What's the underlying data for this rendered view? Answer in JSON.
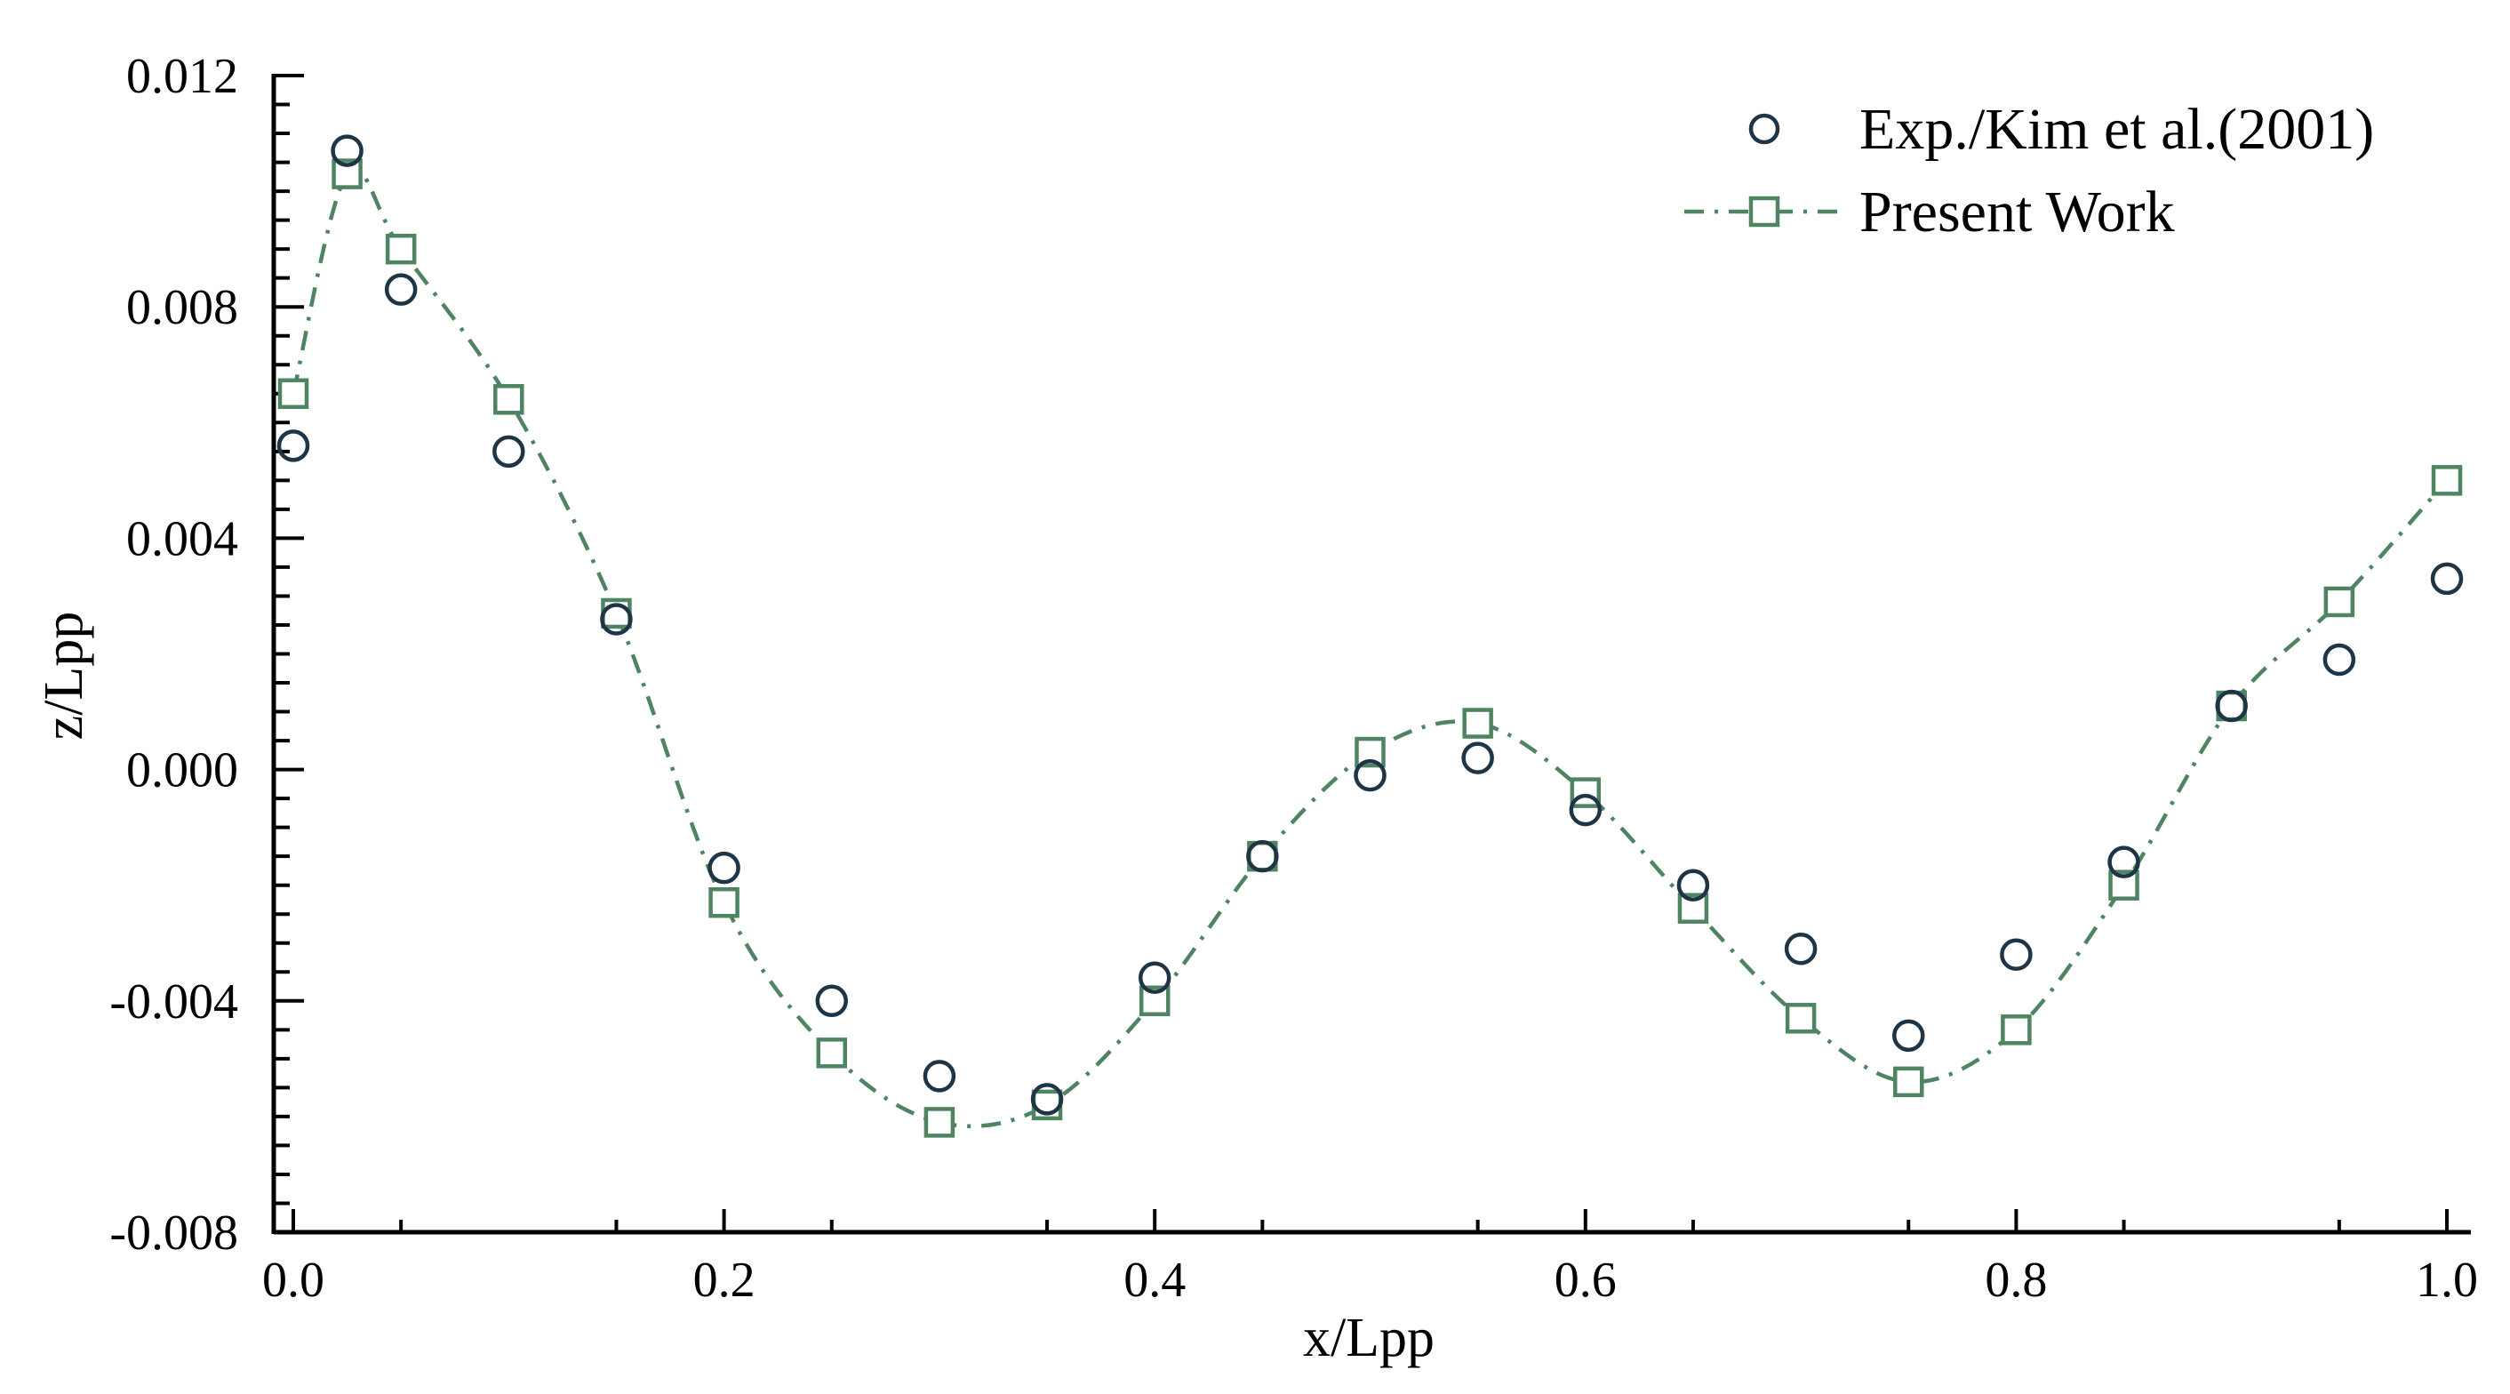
{
  "chart_data": {
    "type": "scatter",
    "title": "",
    "xlabel": "x/Lpp",
    "ylabel": "z/Lpp",
    "xlim": [
      0.0,
      1.0
    ],
    "ylim": [
      -0.008,
      0.012
    ],
    "x_ticks": [
      "0.0",
      "0.2",
      "0.4",
      "0.6",
      "0.8",
      "1.0"
    ],
    "y_ticks": [
      "-0.008",
      "-0.004",
      "0.000",
      "0.004",
      "0.008",
      "0.012"
    ],
    "grid": false,
    "legend_position": "top-right",
    "series": [
      {
        "name": "Exp./Kim et al.(2001)",
        "marker": "circle",
        "line": "none",
        "color": "#1f3445",
        "x": [
          0.0,
          0.025,
          0.05,
          0.1,
          0.15,
          0.2,
          0.25,
          0.3,
          0.35,
          0.4,
          0.45,
          0.5,
          0.55,
          0.6,
          0.65,
          0.7,
          0.75,
          0.8,
          0.85,
          0.9,
          0.95,
          1.0
        ],
        "y": [
          0.0056,
          0.0107,
          0.0083,
          0.0055,
          0.0026,
          -0.0017,
          -0.004,
          -0.0053,
          -0.0057,
          -0.0036,
          -0.0015,
          -0.0001,
          0.0002,
          -0.0007,
          -0.002,
          -0.0031,
          -0.0046,
          -0.0032,
          -0.0016,
          0.0011,
          0.0019,
          0.0033
        ]
      },
      {
        "name": "Present Work",
        "marker": "square",
        "line": "dash-dot",
        "color": "#4e8462",
        "x": [
          0.0,
          0.025,
          0.05,
          0.1,
          0.15,
          0.2,
          0.25,
          0.3,
          0.35,
          0.4,
          0.45,
          0.5,
          0.55,
          0.6,
          0.65,
          0.7,
          0.75,
          0.8,
          0.85,
          0.9,
          0.95,
          1.0
        ],
        "y": [
          0.0065,
          0.0103,
          0.009,
          0.0064,
          0.0027,
          -0.0023,
          -0.0049,
          -0.0061,
          -0.0058,
          -0.004,
          -0.0015,
          0.0003,
          0.0008,
          -0.0004,
          -0.0024,
          -0.0043,
          -0.0054,
          -0.0045,
          -0.002,
          0.0011,
          0.0029,
          0.005
        ]
      }
    ]
  }
}
